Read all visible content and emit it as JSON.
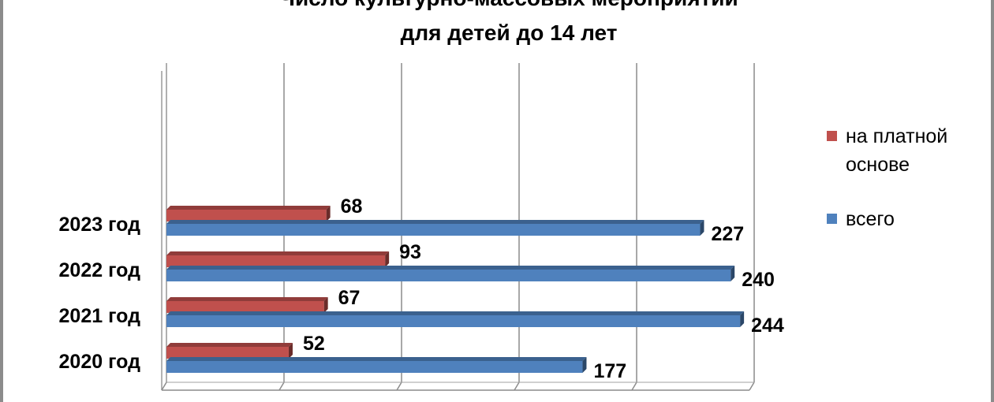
{
  "chart_data": {
    "type": "bar",
    "orientation": "horizontal",
    "title": "Число культурно-массовых мероприятий",
    "subtitle": "для детей до 14 лет",
    "categories": [
      "2020 год",
      "2021 год",
      "2022 год",
      "2023 год"
    ],
    "series": [
      {
        "name": "на платной основе",
        "values": [
          52,
          67,
          93,
          68
        ],
        "color": "#c0504d"
      },
      {
        "name": "всего",
        "values": [
          177,
          244,
          240,
          227
        ],
        "color": "#4f81bd"
      }
    ],
    "xlim": [
      0,
      250
    ],
    "grid": true,
    "legend_position": "right"
  }
}
